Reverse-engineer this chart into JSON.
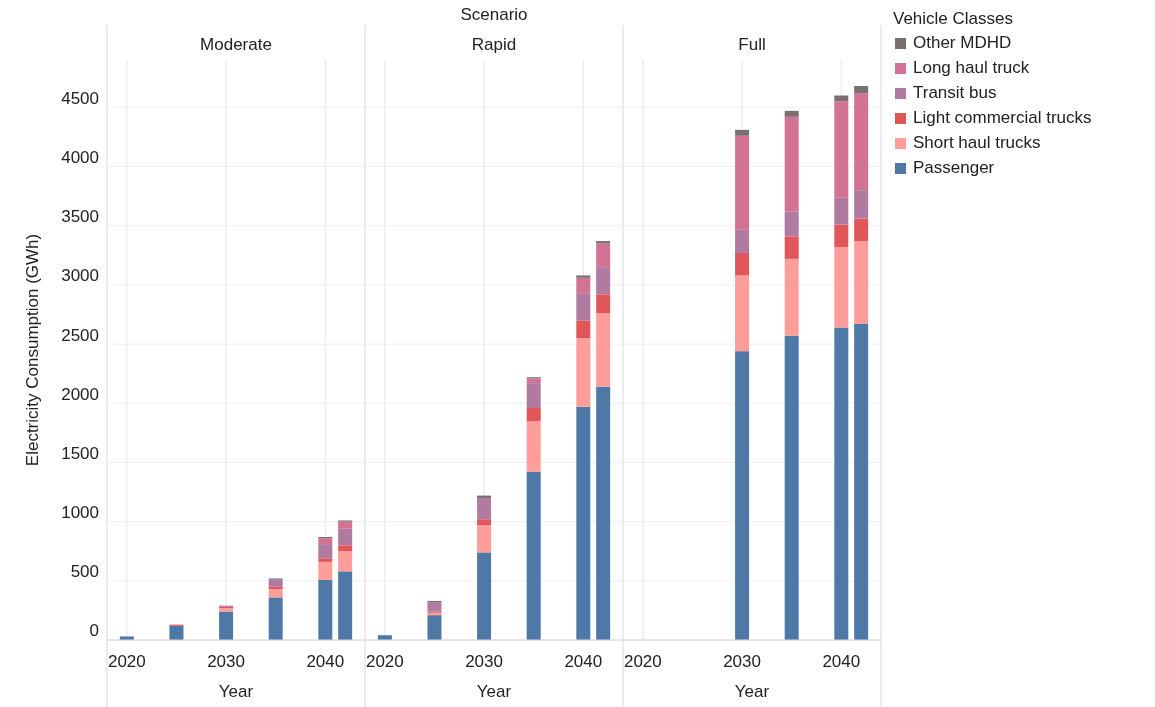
{
  "chart_data": [
    {
      "type": "bar",
      "title": "Moderate",
      "xlabel": "Year",
      "ylabel": "Electricity Consumption (GWh)",
      "stacked": true,
      "x": [
        2020,
        2025,
        2030,
        2035,
        2040,
        2042
      ],
      "xlim": [
        2018,
        2044
      ],
      "xticks": [
        2020,
        2030,
        2040
      ],
      "ylim": [
        0,
        4900
      ],
      "yticks": [
        0,
        500,
        1000,
        1500,
        2000,
        2500,
        3000,
        3500,
        4000,
        4500
      ],
      "grid": true,
      "legend": false,
      "series": [
        {
          "color": "#4e79a7",
          "values": [
            30,
            120,
            240,
            360,
            510,
            580
          ]
        },
        {
          "color": "#ff9d9a",
          "values": [
            0,
            0,
            30,
            70,
            150,
            170
          ]
        },
        {
          "color": "#e15759",
          "values": [
            0,
            10,
            10,
            20,
            30,
            50
          ]
        },
        {
          "color": "#b07aa1",
          "values": [
            0,
            0,
            10,
            60,
            120,
            140
          ]
        },
        {
          "color": "#d37295",
          "values": [
            0,
            0,
            0,
            0,
            50,
            60
          ]
        },
        {
          "color": "#79706e",
          "values": [
            0,
            0,
            0,
            10,
            10,
            10
          ]
        }
      ]
    },
    {
      "type": "bar",
      "title": "Rapid",
      "annotations": [
        "Scenario"
      ],
      "xlabel": "Year",
      "stacked": true,
      "x": [
        2020,
        2025,
        2030,
        2035,
        2040,
        2042
      ],
      "xlim": [
        2018,
        2044
      ],
      "xticks": [
        2020,
        2030,
        2040
      ],
      "ylim": [
        0,
        4900
      ],
      "yticks": [
        0,
        500,
        1000,
        1500,
        2000,
        2500,
        3000,
        3500,
        4000,
        4500
      ],
      "tick_labels": "x",
      "grid": true,
      "legend": false,
      "series": [
        {
          "color": "#4e79a7",
          "values": [
            40,
            210,
            740,
            1420,
            1970,
            2140
          ]
        },
        {
          "color": "#ff9d9a",
          "values": [
            0,
            20,
            230,
            430,
            580,
            620
          ]
        },
        {
          "color": "#e15759",
          "values": [
            0,
            10,
            50,
            110,
            150,
            160
          ]
        },
        {
          "color": "#b07aa1",
          "values": [
            0,
            80,
            180,
            210,
            230,
            230
          ]
        },
        {
          "color": "#d37295",
          "values": [
            0,
            0,
            0,
            40,
            130,
            200
          ]
        },
        {
          "color": "#79706e",
          "values": [
            0,
            10,
            20,
            10,
            20,
            20
          ]
        }
      ]
    },
    {
      "type": "bar",
      "title": "Full",
      "xlabel": "Year",
      "legend_title": "Vehicle Classes",
      "stacked": true,
      "x": [
        2030,
        2035,
        2040,
        2042
      ],
      "xlim": [
        2018,
        2044
      ],
      "xticks": [
        2020,
        2030,
        2040
      ],
      "ylim": [
        0,
        4900
      ],
      "yticks": [
        0,
        500,
        1000,
        1500,
        2000,
        2500,
        3000,
        3500,
        4000,
        4500
      ],
      "tick_labels": "x",
      "grid": true,
      "legend": "right",
      "series": [
        {
          "name": "Passenger",
          "color": "#4e79a7",
          "values": [
            2440,
            2570,
            2640,
            2670
          ]
        },
        {
          "name": "Short haul trucks",
          "color": "#ff9d9a",
          "values": [
            640,
            650,
            680,
            700
          ]
        },
        {
          "name": "Light commercial trucks",
          "color": "#e15759",
          "values": [
            190,
            190,
            190,
            190
          ]
        },
        {
          "name": "Transit bus",
          "color": "#b07aa1",
          "values": [
            200,
            210,
            230,
            240
          ]
        },
        {
          "name": "Long haul truck",
          "color": "#d37295",
          "values": [
            790,
            800,
            810,
            820
          ]
        },
        {
          "name": "Other MDHD",
          "color": "#79706e",
          "values": [
            50,
            50,
            50,
            60
          ]
        }
      ]
    }
  ]
}
